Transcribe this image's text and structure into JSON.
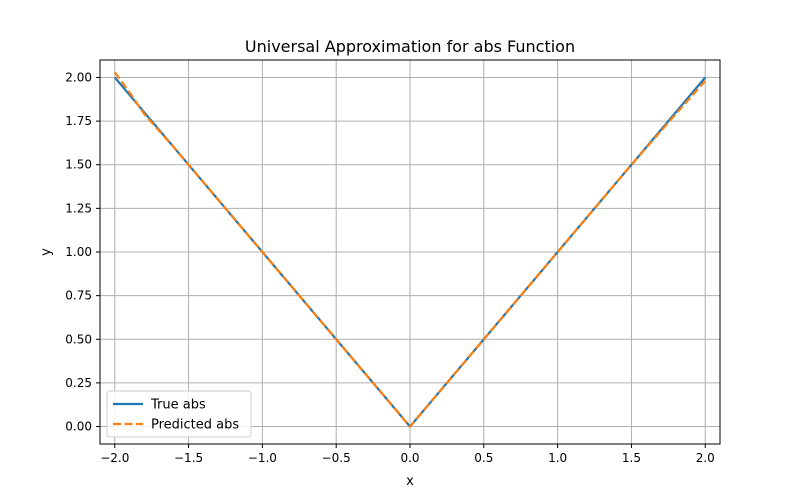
{
  "chart_data": {
    "type": "line",
    "title": "Universal Approximation for abs Function",
    "xlabel": "x",
    "ylabel": "y",
    "xlim": [
      -2.1,
      2.1
    ],
    "ylim": [
      -0.1,
      2.1
    ],
    "xticks": [
      -2.0,
      -1.5,
      -1.0,
      -0.5,
      0.0,
      0.5,
      1.0,
      1.5,
      2.0
    ],
    "xtick_labels": [
      "−2.0",
      "−1.5",
      "−1.0",
      "−0.5",
      "0.0",
      "0.5",
      "1.0",
      "1.5",
      "2.0"
    ],
    "yticks": [
      0.0,
      0.25,
      0.5,
      0.75,
      1.0,
      1.25,
      1.5,
      1.75,
      2.0
    ],
    "ytick_labels": [
      "0.00",
      "0.25",
      "0.50",
      "0.75",
      "1.00",
      "1.25",
      "1.50",
      "1.75",
      "2.00"
    ],
    "grid": true,
    "legend_position": "lower-left",
    "series": [
      {
        "name": "True abs",
        "color": "#1f77b4",
        "style": "solid",
        "x": [
          -2.0,
          0.0,
          2.0
        ],
        "y": [
          2.0,
          0.0,
          2.0
        ]
      },
      {
        "name": "Predicted abs",
        "color": "#ff7f0e",
        "style": "dashed",
        "x": [
          -2.0,
          -1.9,
          -1.8,
          -1.6,
          -1.5,
          -1.0,
          -0.5,
          0.0,
          0.5,
          1.0,
          1.5,
          1.8,
          2.0
        ],
        "y": [
          2.03,
          1.915,
          1.79,
          1.6,
          1.5,
          1.0,
          0.5,
          0.0,
          0.5,
          1.0,
          1.5,
          1.79,
          1.98
        ]
      }
    ]
  }
}
